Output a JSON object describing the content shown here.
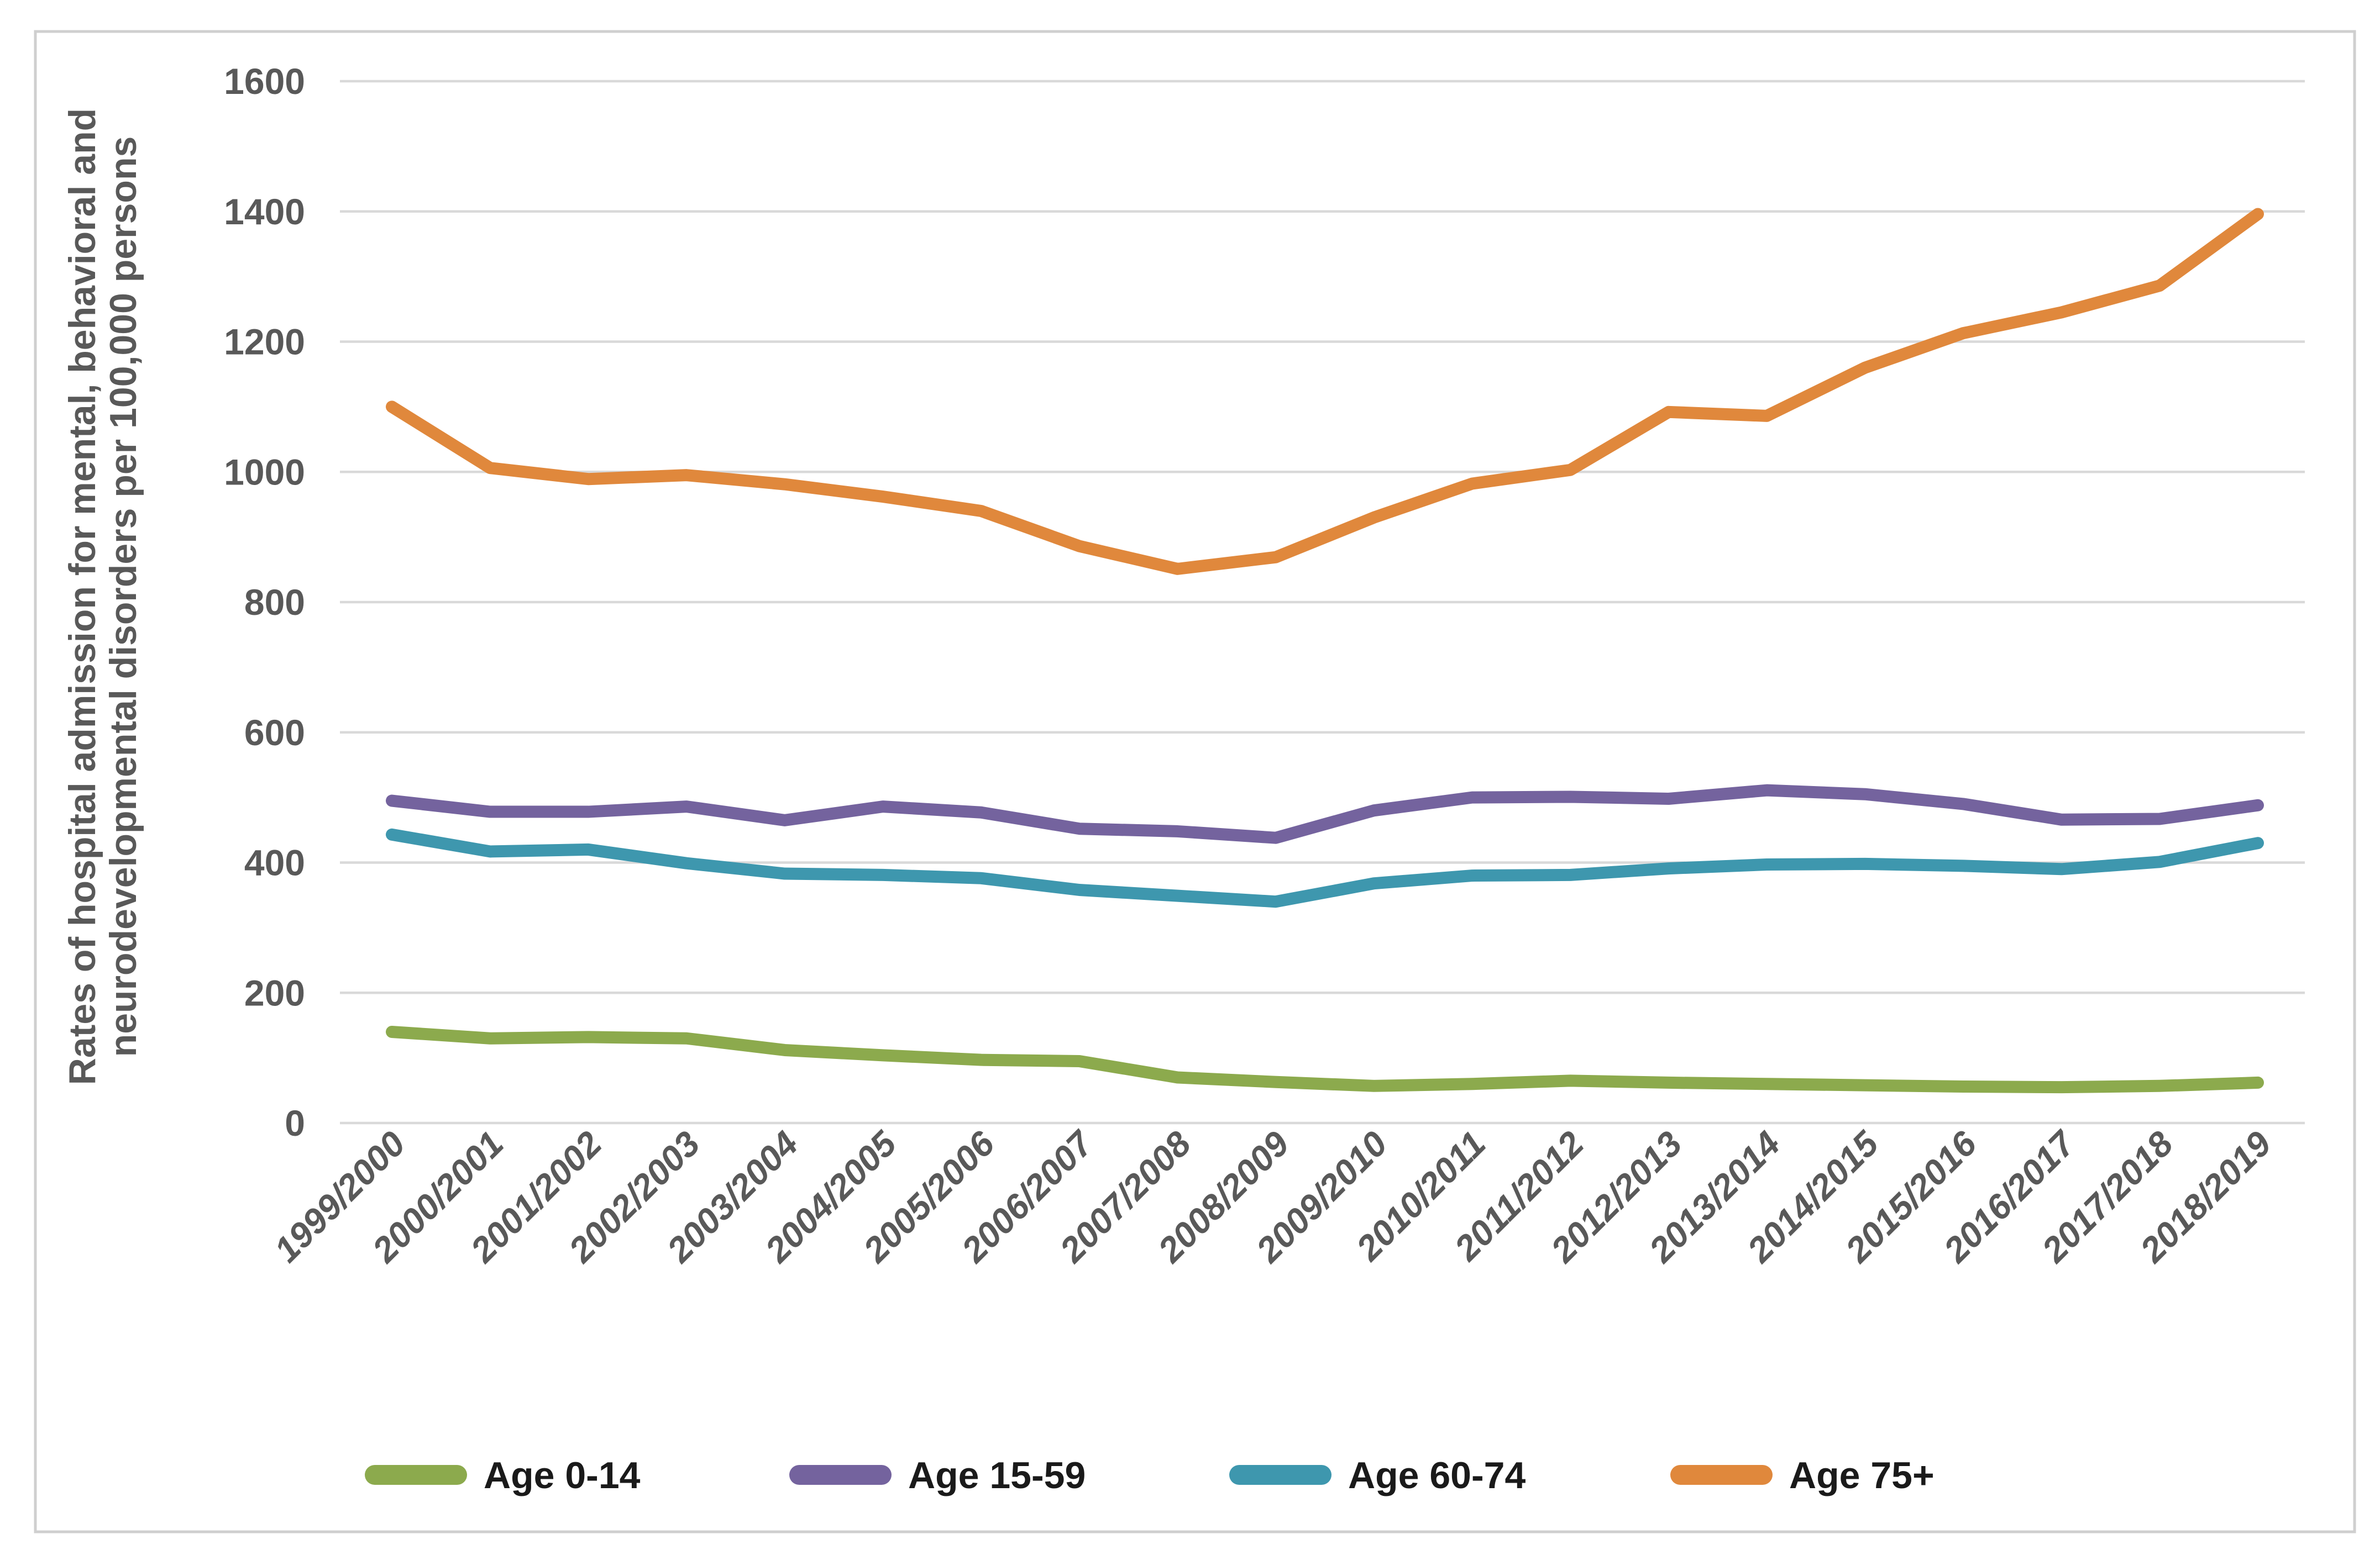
{
  "chart_data": {
    "type": "line",
    "title": "",
    "ylabel": "Rates of hospital admission for mental, behavioral and neurodevelopmental disorders per 100,000 persons",
    "ylabel_lines": [
      "Rates of hospital admission for mental, behavioral and",
      "neurodevelopmental disorders per 100,000 persons"
    ],
    "categories": [
      "1999/2000",
      "2000/2001",
      "2001/2002",
      "2002/2003",
      "2003/2004",
      "2004/2005",
      "2005/2006",
      "2006/2007",
      "2007/2008",
      "2008/2009",
      "2009/2010",
      "2010/2011",
      "2011/2012",
      "2012/2013",
      "2013/2014",
      "2014/2015",
      "2015/2016",
      "2016/2017",
      "2017/2018",
      "2018/2019"
    ],
    "series": [
      {
        "name": "Age 0-14",
        "color": "#8CAA4D",
        "values": [
          140,
          130,
          132,
          130,
          112,
          104,
          97,
          95,
          70,
          63,
          57,
          60,
          65,
          62,
          60,
          58,
          56,
          55,
          57,
          62
        ]
      },
      {
        "name": "Age 15-59",
        "color": "#74639E",
        "values": [
          495,
          478,
          478,
          486,
          465,
          486,
          477,
          452,
          448,
          438,
          480,
          500,
          501,
          498,
          511,
          505,
          490,
          466,
          467,
          488
        ]
      },
      {
        "name": "Age 60-74",
        "color": "#3E97AE",
        "values": [
          443,
          417,
          420,
          399,
          383,
          381,
          376,
          358,
          349,
          340,
          368,
          380,
          381,
          391,
          397,
          398,
          395,
          390,
          401,
          430
        ]
      },
      {
        "name": "Age 75+",
        "color": "#E0883C",
        "values": [
          1100,
          1006,
          989,
          995,
          981,
          962,
          940,
          886,
          851,
          869,
          930,
          982,
          1003,
          1092,
          1086,
          1160,
          1213,
          1245,
          1286,
          1396
        ]
      }
    ],
    "y_axis": {
      "min": 0,
      "max": 1600,
      "step": 200,
      "tick_labels": [
        "0",
        "200",
        "400",
        "600",
        "800",
        "1000",
        "1200",
        "1400",
        "1600"
      ]
    },
    "grid": true,
    "legend_position": "bottom",
    "legend": [
      "Age 0-14",
      "Age 15-59",
      "Age 60-74",
      "Age 75+"
    ]
  },
  "colors": {
    "grid": "#D9D9D9",
    "border": "#CFCFCF",
    "axis_text": "#595959",
    "legend_text": "#1a1a1a",
    "background": "#FFFFFF",
    "series_green": "#8CAA4D",
    "series_purple": "#74639E",
    "series_teal": "#3E97AE",
    "series_orange": "#E0883C"
  }
}
